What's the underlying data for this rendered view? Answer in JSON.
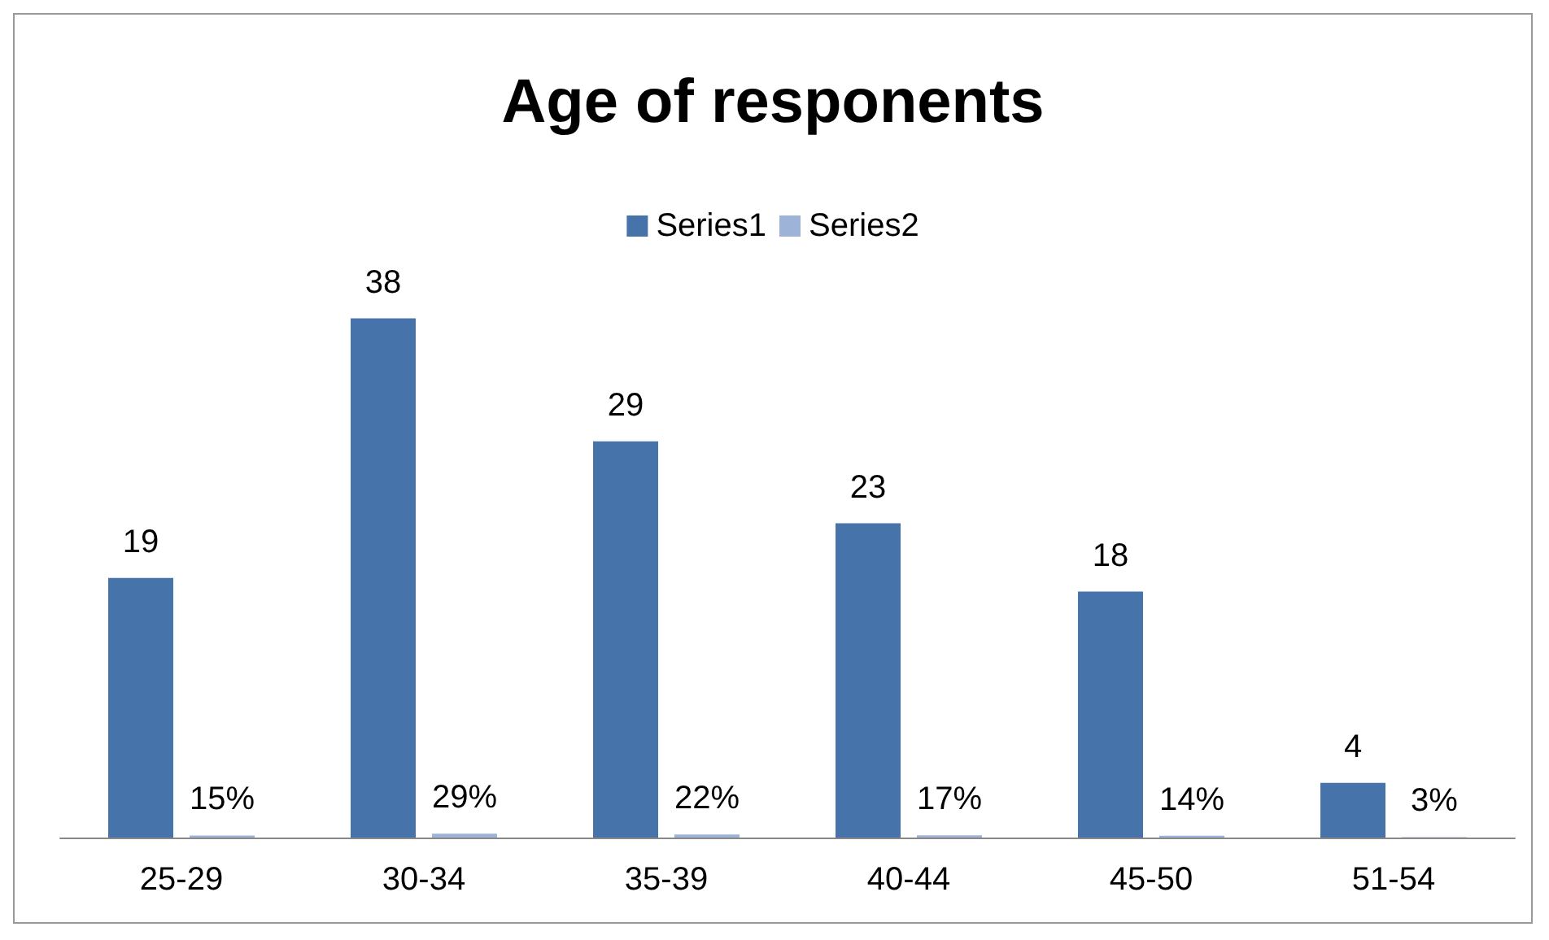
{
  "chart_data": {
    "type": "bar",
    "title": "Age of responents",
    "categories": [
      "25-29",
      "30-34",
      "35-39",
      "40-44",
      "45-50",
      "51-54"
    ],
    "series": [
      {
        "name": "Series1",
        "color": "#4674aa",
        "values": [
          19,
          38,
          29,
          23,
          18,
          4
        ],
        "value_labels": [
          "19",
          "38",
          "29",
          "23",
          "18",
          "4"
        ]
      },
      {
        "name": "Series2",
        "color": "#9db3d8",
        "values": [
          0.15,
          0.29,
          0.22,
          0.17,
          0.14,
          0.03
        ],
        "value_labels": [
          "15%",
          "29%",
          "22%",
          "17%",
          "14%",
          "3%"
        ]
      }
    ],
    "legend": "top",
    "grid": false
  }
}
